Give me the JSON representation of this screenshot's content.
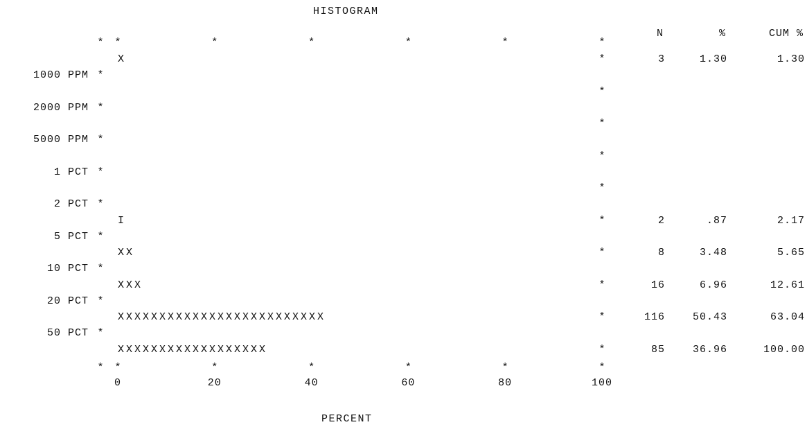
{
  "chart_data": {
    "type": "bar",
    "title": "HISTOGRAM",
    "xlabel": "PERCENT",
    "xlim": [
      0,
      100
    ],
    "x_ticks": [
      "0",
      "20",
      "40",
      "60",
      "80",
      "100"
    ],
    "boundary_labels": [
      "1000 PPM",
      "2000 PPM",
      "5000 PPM",
      "1 PCT",
      "2 PCT",
      "5 PCT",
      "10 PCT",
      "20 PCT",
      "50 PCT"
    ],
    "bar_char": "X",
    "axis_char": "*",
    "table_headers": [
      "N",
      "%",
      "CUM %"
    ],
    "rows": [
      {
        "bar": "X",
        "pct": 1.3,
        "n": "3",
        "pct_label": "1.30",
        "cum": "1.30"
      },
      {
        "bar": "",
        "pct": 0,
        "n": "",
        "pct_label": "",
        "cum": ""
      },
      {
        "bar": "",
        "pct": 0,
        "n": "",
        "pct_label": "",
        "cum": ""
      },
      {
        "bar": "",
        "pct": 0,
        "n": "",
        "pct_label": "",
        "cum": ""
      },
      {
        "bar": "",
        "pct": 0,
        "n": "",
        "pct_label": "",
        "cum": ""
      },
      {
        "bar": "I",
        "pct": 0.87,
        "n": "2",
        "pct_label": ".87",
        "cum": "2.17"
      },
      {
        "bar": "XX",
        "pct": 3.48,
        "n": "8",
        "pct_label": "3.48",
        "cum": "5.65"
      },
      {
        "bar": "XXX",
        "pct": 6.96,
        "n": "16",
        "pct_label": "6.96",
        "cum": "12.61"
      },
      {
        "bar": "XXXXXXXXXXXXXXXXXXXXXXXXX",
        "pct": 50.43,
        "n": "116",
        "pct_label": "50.43",
        "cum": "63.04"
      },
      {
        "bar": "XXXXXXXXXXXXXXXXXX",
        "pct": 36.96,
        "n": "85",
        "pct_label": "36.96",
        "cum": "100.00"
      }
    ]
  }
}
